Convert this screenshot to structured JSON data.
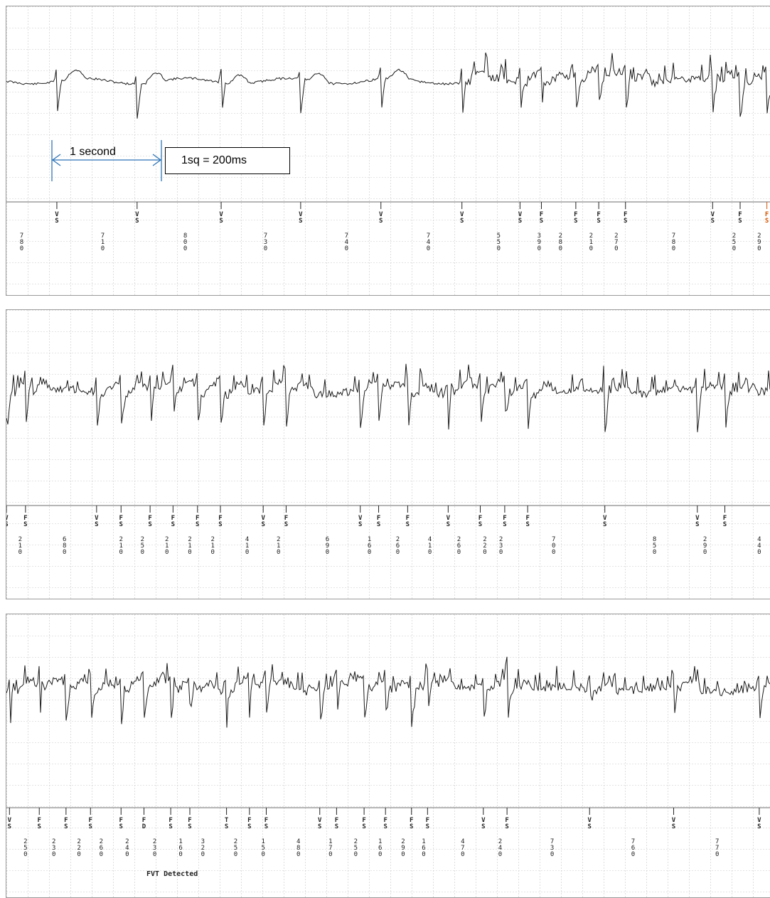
{
  "annotations": {
    "caliper_label": "1 second",
    "scale_label": "1sq = 200ms",
    "event_label": "FVT Detected"
  },
  "colors": {
    "grid": "#c9c9c9",
    "trace": "#1a1a1a",
    "caliper": "#2e75b6",
    "marker_text": "#222222",
    "highlight": "#d35400"
  },
  "strips": [
    {
      "markers": [
        {
          "code": "VS",
          "t": 0.066
        },
        {
          "code": "VS",
          "t": 0.171
        },
        {
          "code": "VS",
          "t": 0.281
        },
        {
          "code": "VS",
          "t": 0.385
        },
        {
          "code": "VS",
          "t": 0.49
        },
        {
          "code": "VS",
          "t": 0.596
        },
        {
          "code": "VS",
          "t": 0.672
        },
        {
          "code": "FS",
          "t": 0.7
        },
        {
          "code": "FS",
          "t": 0.745
        },
        {
          "code": "FS",
          "t": 0.775
        },
        {
          "code": "FS",
          "t": 0.81
        },
        {
          "code": "VS",
          "t": 0.924
        },
        {
          "code": "FS",
          "t": 0.96
        },
        {
          "code": "FS",
          "t": 0.995,
          "highlight": true
        }
      ],
      "intervals": [
        {
          "value": "780",
          "t": 0.02
        },
        {
          "value": "710",
          "t": 0.126
        },
        {
          "value": "800",
          "t": 0.234
        },
        {
          "value": "730",
          "t": 0.339
        },
        {
          "value": "740",
          "t": 0.445
        },
        {
          "value": "740",
          "t": 0.552
        },
        {
          "value": "550",
          "t": 0.644
        },
        {
          "value": "390",
          "t": 0.697
        },
        {
          "value": "280",
          "t": 0.725
        },
        {
          "value": "210",
          "t": 0.765
        },
        {
          "value": "270",
          "t": 0.798
        },
        {
          "value": "780",
          "t": 0.873
        },
        {
          "value": "250",
          "t": 0.952
        },
        {
          "value": "290",
          "t": 0.985
        }
      ]
    },
    {
      "markers": [
        {
          "code": "VS",
          "t": 0.0
        },
        {
          "code": "FS",
          "t": 0.025
        },
        {
          "code": "VS",
          "t": 0.118
        },
        {
          "code": "FS",
          "t": 0.15
        },
        {
          "code": "FS",
          "t": 0.188
        },
        {
          "code": "FS",
          "t": 0.218
        },
        {
          "code": "FS",
          "t": 0.25
        },
        {
          "code": "FS",
          "t": 0.28
        },
        {
          "code": "VS",
          "t": 0.336
        },
        {
          "code": "FS",
          "t": 0.366
        },
        {
          "code": "VS",
          "t": 0.463
        },
        {
          "code": "FS",
          "t": 0.487
        },
        {
          "code": "FS",
          "t": 0.525
        },
        {
          "code": "VS",
          "t": 0.578
        },
        {
          "code": "FS",
          "t": 0.62
        },
        {
          "code": "FS",
          "t": 0.652
        },
        {
          "code": "FS",
          "t": 0.682
        },
        {
          "code": "VS",
          "t": 0.783
        },
        {
          "code": "VS",
          "t": 0.904
        },
        {
          "code": "FS",
          "t": 0.94
        }
      ],
      "intervals": [
        {
          "value": "210",
          "t": 0.018
        },
        {
          "value": "680",
          "t": 0.076
        },
        {
          "value": "210",
          "t": 0.15
        },
        {
          "value": "250",
          "t": 0.178
        },
        {
          "value": "210",
          "t": 0.21
        },
        {
          "value": "210",
          "t": 0.24
        },
        {
          "value": "210",
          "t": 0.27
        },
        {
          "value": "410",
          "t": 0.315
        },
        {
          "value": "210",
          "t": 0.356
        },
        {
          "value": "690",
          "t": 0.42
        },
        {
          "value": "160",
          "t": 0.475
        },
        {
          "value": "260",
          "t": 0.512
        },
        {
          "value": "410",
          "t": 0.554
        },
        {
          "value": "260",
          "t": 0.592
        },
        {
          "value": "220",
          "t": 0.626
        },
        {
          "value": "230",
          "t": 0.647
        },
        {
          "value": "700",
          "t": 0.716
        },
        {
          "value": "850",
          "t": 0.848
        },
        {
          "value": "290",
          "t": 0.914
        },
        {
          "value": "440",
          "t": 0.985
        }
      ]
    },
    {
      "markers": [
        {
          "code": "VS",
          "t": 0.004
        },
        {
          "code": "FS",
          "t": 0.043
        },
        {
          "code": "FS",
          "t": 0.078
        },
        {
          "code": "FS",
          "t": 0.11
        },
        {
          "code": "FS",
          "t": 0.15
        },
        {
          "code": "FD",
          "t": 0.18
        },
        {
          "code": "FS",
          "t": 0.215
        },
        {
          "code": "FS",
          "t": 0.24
        },
        {
          "code": "TS",
          "t": 0.288
        },
        {
          "code": "FS",
          "t": 0.318
        },
        {
          "code": "FS",
          "t": 0.34
        },
        {
          "code": "VS",
          "t": 0.41
        },
        {
          "code": "FS",
          "t": 0.432
        },
        {
          "code": "FS",
          "t": 0.468
        },
        {
          "code": "FS",
          "t": 0.496
        },
        {
          "code": "FS",
          "t": 0.53
        },
        {
          "code": "FS",
          "t": 0.551
        },
        {
          "code": "VS",
          "t": 0.624
        },
        {
          "code": "FS",
          "t": 0.655
        },
        {
          "code": "VS",
          "t": 0.763
        },
        {
          "code": "VS",
          "t": 0.873
        },
        {
          "code": "VS",
          "t": 0.985
        }
      ],
      "intervals": [
        {
          "value": "250",
          "t": 0.025
        },
        {
          "value": "230",
          "t": 0.062
        },
        {
          "value": "220",
          "t": 0.095
        },
        {
          "value": "260",
          "t": 0.124
        },
        {
          "value": "240",
          "t": 0.158
        },
        {
          "value": "230",
          "t": 0.194
        },
        {
          "value": "160",
          "t": 0.228
        },
        {
          "value": "320",
          "t": 0.257
        },
        {
          "value": "250",
          "t": 0.3
        },
        {
          "value": "150",
          "t": 0.336
        },
        {
          "value": "480",
          "t": 0.382
        },
        {
          "value": "170",
          "t": 0.424
        },
        {
          "value": "250",
          "t": 0.457
        },
        {
          "value": "160",
          "t": 0.489
        },
        {
          "value": "290",
          "t": 0.519
        },
        {
          "value": "160",
          "t": 0.546
        },
        {
          "value": "470",
          "t": 0.597
        },
        {
          "value": "240",
          "t": 0.646
        },
        {
          "value": "730",
          "t": 0.714
        },
        {
          "value": "760",
          "t": 0.82
        },
        {
          "value": "770",
          "t": 0.93
        }
      ]
    }
  ]
}
